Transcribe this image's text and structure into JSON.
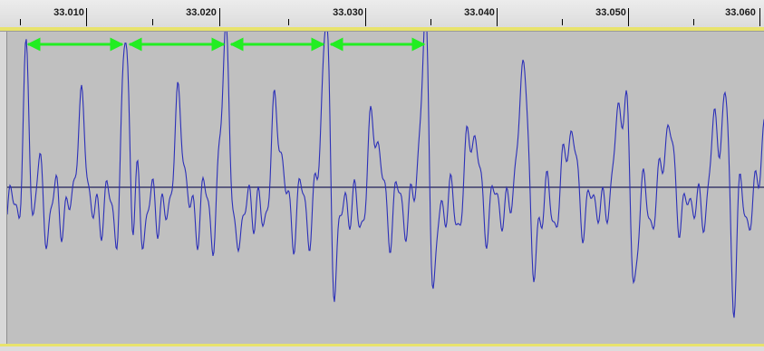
{
  "timeline": {
    "tick_labels": [
      "33.010",
      "33.020",
      "33.030",
      "33.040",
      "33.050",
      "33.060"
    ]
  },
  "colors": {
    "waveform": "#2b2fb8",
    "centerline": "#3a3a6a",
    "period_arrow": "#22ee22",
    "panel_background": "#c0c0c0",
    "track_edge": "#e8e36c"
  },
  "icons": {
    "period_markers": "double-headed-arrow-icon"
  }
}
